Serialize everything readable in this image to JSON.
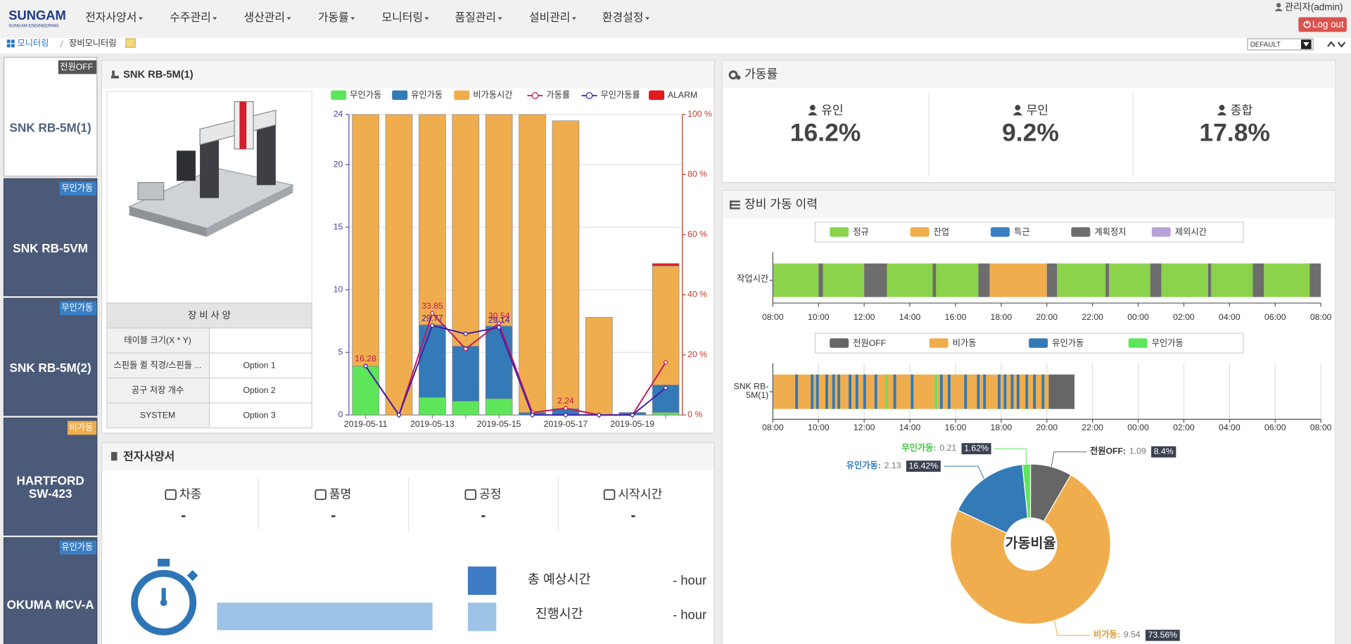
{
  "nav": {
    "logo": "SUNGAM",
    "logo_sub": "SUNGAM ENGINEERING",
    "menu": [
      "전자사양서",
      "수주관리",
      "생산관리",
      "가동률",
      "모니터링",
      "품질관리",
      "설비관리",
      "환경설정"
    ],
    "user": "관리자(admin)",
    "logout": "Log out"
  },
  "breadcrumb": [
    "모니터링",
    "장비모니터링"
  ],
  "view_select": "DEFAULT",
  "machines": [
    {
      "status": "전원OFF",
      "name": "SNK RB-5M(1)",
      "color": "#555555"
    },
    {
      "status": "무인가동",
      "name": "SNK RB-5VM",
      "color": "#3a7fc4"
    },
    {
      "status": "무인가동",
      "name": "SNK RB-5M(2)",
      "color": "#3a7fc4"
    },
    {
      "status": "비가동",
      "name": "HARTFORD SW-423",
      "color": "#f0ad4e"
    },
    {
      "status": "유인가동",
      "name": "OKUMA MCV-A",
      "color": "#3a7fc4"
    }
  ],
  "equipment_panel": {
    "title": "SNK RB-5M(1)",
    "spec": {
      "header": "장 비 사 양",
      "rows": [
        [
          "테이블 크기(X * Y)"
        ],
        [
          "스핀들 퀼 직경/스핀들 ...",
          "Option 1"
        ],
        [
          "공구 저장 개수",
          "Option 2"
        ],
        [
          "SYSTEM",
          "Option 3"
        ]
      ]
    }
  },
  "spec_sheet": {
    "title": "전자사양서",
    "fields": [
      {
        "label": "차종",
        "value": "-"
      },
      {
        "label": "품명",
        "value": "-"
      },
      {
        "label": "공정",
        "value": "-"
      },
      {
        "label": "시작시간",
        "value": "-"
      }
    ],
    "timers": [
      {
        "label": "총 예상시간",
        "value": "- hour"
      },
      {
        "label": "진행시간",
        "value": "- hour"
      }
    ]
  },
  "utilization": {
    "title": "가동률",
    "items": [
      {
        "label": "유인",
        "value": "16.2%"
      },
      {
        "label": "무인",
        "value": "9.2%"
      },
      {
        "label": "종합",
        "value": "17.8%"
      }
    ]
  },
  "history": {
    "title": "장비 가동 이력"
  },
  "chart_data": [
    {
      "type": "bar",
      "categories": [
        "2019-05-11",
        null,
        "2019-05-13",
        null,
        "2019-05-15",
        null,
        "2019-05-17",
        null,
        "2019-05-19",
        null
      ],
      "series": [
        {
          "name": "무인가동",
          "color": "#5ee65a",
          "values": [
            3.9,
            0,
            1.4,
            1.1,
            1.3,
            0,
            0,
            0,
            0,
            0.2
          ]
        },
        {
          "name": "유인가동",
          "color": "#337ab7",
          "values": [
            0,
            0,
            5.8,
            4.4,
            5.8,
            0.2,
            0.5,
            0,
            0.2,
            2.2
          ]
        },
        {
          "name": "비가동시간",
          "color": "#f0ad4e",
          "values": [
            20.1,
            24,
            16.8,
            18.5,
            16.9,
            23.8,
            23,
            7.8,
            0,
            9.5
          ]
        },
        {
          "name": "가동률",
          "type": "line",
          "axis": "y2",
          "color": "#c2185b",
          "values": [
            16.28,
            0,
            33.85,
            22,
            30.54,
            0.8,
            2.24,
            0,
            0,
            17.5
          ],
          "value_labels": [
            "16.28",
            null,
            "33.85",
            null,
            "30.54",
            null,
            "2.24",
            null,
            null,
            null
          ]
        },
        {
          "name": "무인가동률",
          "type": "line",
          "axis": "y2",
          "color": "#3f1fa8",
          "values": [
            16.28,
            0,
            29.77,
            27,
            29.14,
            0,
            0,
            0,
            0,
            9
          ],
          "value_labels": [
            null,
            null,
            "29.77",
            null,
            "29.14",
            null,
            null,
            null,
            null,
            null
          ]
        },
        {
          "name": "ALARM",
          "color": "#e31a1c",
          "values": [
            0,
            0,
            0,
            0,
            0,
            0,
            0,
            0,
            0,
            0.2
          ]
        }
      ],
      "ylim": [
        0,
        24
      ],
      "yticks": [
        0,
        5,
        10,
        15,
        20,
        24
      ],
      "y2lim": [
        0,
        100
      ],
      "y2ticks": [
        {
          "value": 0,
          "label": "0 %"
        },
        {
          "value": 20,
          "label": "20 %"
        },
        {
          "value": 40,
          "label": "40 %"
        },
        {
          "value": 60,
          "label": "60 %"
        },
        {
          "value": 80,
          "label": "80 %"
        },
        {
          "value": 100,
          "label": "100 %"
        }
      ],
      "grid": true,
      "legend": "top"
    },
    {
      "type": "timeline",
      "ylabel": "작업시간",
      "legend": [
        {
          "name": "정규",
          "color": "#8bd34a"
        },
        {
          "name": "잔업",
          "color": "#f0ad4e"
        },
        {
          "name": "특근",
          "color": "#3a7fc4"
        },
        {
          "name": "계획정지",
          "color": "#6d6d6d"
        },
        {
          "name": "제외시간",
          "color": "#b8a3d6"
        }
      ],
      "xlim": [
        0,
        24
      ],
      "xticks": [
        {
          "value": 0,
          "label": "08:00"
        },
        {
          "value": 2,
          "label": "10:00"
        },
        {
          "value": 4,
          "label": "12:00"
        },
        {
          "value": 6,
          "label": "14:00"
        },
        {
          "value": 8,
          "label": "16:00"
        },
        {
          "value": 10,
          "label": "18:00"
        },
        {
          "value": 12,
          "label": "20:00"
        },
        {
          "value": 14,
          "label": "22:00"
        },
        {
          "value": 16,
          "label": "00:00"
        },
        {
          "value": 18,
          "label": "02:00"
        },
        {
          "value": 20,
          "label": "04:00"
        },
        {
          "value": 22,
          "label": "06:00"
        },
        {
          "value": 24,
          "label": "08:00"
        }
      ],
      "grid": false,
      "segments": [
        {
          "kind": "정규",
          "start": 0,
          "end": 2
        },
        {
          "kind": "계획정지",
          "start": 2,
          "end": 2.2
        },
        {
          "kind": "정규",
          "start": 2.2,
          "end": 4
        },
        {
          "kind": "계획정지",
          "start": 4,
          "end": 5
        },
        {
          "kind": "정규",
          "start": 5,
          "end": 7
        },
        {
          "kind": "계획정지",
          "start": 7,
          "end": 7.15
        },
        {
          "kind": "정규",
          "start": 7.15,
          "end": 9
        },
        {
          "kind": "계획정지",
          "start": 9,
          "end": 9.5
        },
        {
          "kind": "잔업",
          "start": 9.5,
          "end": 12
        },
        {
          "kind": "계획정지",
          "start": 12,
          "end": 12.45
        },
        {
          "kind": "정규",
          "start": 12.45,
          "end": 14.57
        },
        {
          "kind": "계획정지",
          "start": 14.57,
          "end": 14.72
        },
        {
          "kind": "정규",
          "start": 14.72,
          "end": 16.53
        },
        {
          "kind": "계획정지",
          "start": 16.53,
          "end": 17.02
        },
        {
          "kind": "정규",
          "start": 17.02,
          "end": 19.06
        },
        {
          "kind": "계획정지",
          "start": 19.06,
          "end": 19.2
        },
        {
          "kind": "정규",
          "start": 19.2,
          "end": 21.02
        },
        {
          "kind": "계획정지",
          "start": 21.02,
          "end": 21.51
        },
        {
          "kind": "정규",
          "start": 21.51,
          "end": 23.51
        },
        {
          "kind": "계획정지",
          "start": 23.51,
          "end": 24
        }
      ]
    },
    {
      "type": "timeline",
      "ylabel": "SNK RB-5M(1)",
      "legend": [
        {
          "name": "전원OFF",
          "color": "#666666"
        },
        {
          "name": "비가동",
          "color": "#f0ad4e"
        },
        {
          "name": "유인가동",
          "color": "#337ab7"
        },
        {
          "name": "무인가동",
          "color": "#5ee65a"
        }
      ],
      "xlim": [
        0,
        24
      ],
      "xticks": [
        {
          "value": 0,
          "label": "08:00"
        },
        {
          "value": 2,
          "label": "10:00"
        },
        {
          "value": 4,
          "label": "12:00"
        },
        {
          "value": 6,
          "label": "14:00"
        },
        {
          "value": 8,
          "label": "16:00"
        },
        {
          "value": 10,
          "label": "18:00"
        },
        {
          "value": 12,
          "label": "20:00"
        },
        {
          "value": 14,
          "label": "22:00"
        },
        {
          "value": 16,
          "label": "00:00"
        },
        {
          "value": 18,
          "label": "02:00"
        },
        {
          "value": 20,
          "label": "04:00"
        },
        {
          "value": 22,
          "label": "06:00"
        },
        {
          "value": 24,
          "label": "08:00"
        }
      ],
      "grid": true,
      "segments": [
        {
          "kind": "비가동",
          "start": 0,
          "end": 12.08
        },
        {
          "kind": "전원OFF",
          "start": 12.08,
          "end": 13.21
        },
        {
          "kind": "유인가동",
          "start": 0.98,
          "end": 1.1
        },
        {
          "kind": "유인가동",
          "start": 1.66,
          "end": 1.78
        },
        {
          "kind": "유인가동",
          "start": 1.89,
          "end": 2.01
        },
        {
          "kind": "유인가동",
          "start": 2.3,
          "end": 2.42
        },
        {
          "kind": "유인가동",
          "start": 2.6,
          "end": 2.72
        },
        {
          "kind": "유인가동",
          "start": 2.83,
          "end": 2.95
        },
        {
          "kind": "유인가동",
          "start": 3.32,
          "end": 3.44
        },
        {
          "kind": "유인가동",
          "start": 3.62,
          "end": 3.74
        },
        {
          "kind": "유인가동",
          "start": 3.96,
          "end": 4.08
        },
        {
          "kind": "유인가동",
          "start": 4.45,
          "end": 4.57
        },
        {
          "kind": "무인가동",
          "start": 4.94,
          "end": 5.04
        },
        {
          "kind": "유인가동",
          "start": 5.28,
          "end": 5.4
        },
        {
          "kind": "유인가동",
          "start": 6.04,
          "end": 6.16
        },
        {
          "kind": "무인가동",
          "start": 7.09,
          "end": 7.19
        },
        {
          "kind": "유인가동",
          "start": 7.32,
          "end": 7.44
        },
        {
          "kind": "유인가동",
          "start": 7.66,
          "end": 7.78
        },
        {
          "kind": "유인가동",
          "start": 8.38,
          "end": 8.5
        },
        {
          "kind": "유인가동",
          "start": 8.94,
          "end": 9.06
        },
        {
          "kind": "유인가동",
          "start": 9.21,
          "end": 9.33
        },
        {
          "kind": "유인가동",
          "start": 9.85,
          "end": 9.97
        },
        {
          "kind": "유인가동",
          "start": 10.11,
          "end": 10.23
        },
        {
          "kind": "유인가동",
          "start": 10.42,
          "end": 10.54
        },
        {
          "kind": "유인가동",
          "start": 10.68,
          "end": 10.8
        },
        {
          "kind": "유인가동",
          "start": 11.06,
          "end": 11.18
        },
        {
          "kind": "유인가동",
          "start": 11.4,
          "end": 11.52
        },
        {
          "kind": "유인가동",
          "start": 11.77,
          "end": 11.89
        }
      ]
    },
    {
      "type": "pie",
      "title": "가동비율",
      "categories": [
        "전원OFF:",
        "비가동:",
        "유인가동:",
        "무인가동:"
      ],
      "values": [
        1.09,
        9.54,
        2.13,
        0.21
      ],
      "colors": [
        "#666666",
        "#f0ad4e",
        "#337ab7",
        "#5ee65a"
      ],
      "label_colors": [
        "#333333",
        "#e0962a",
        "#337ab7",
        "#3cc83a"
      ],
      "percents": [
        8.4,
        73.56,
        16.42,
        1.62
      ],
      "percent_labels": [
        "8.4%",
        "73.56%",
        "16.42%",
        "1.62%"
      ]
    }
  ]
}
